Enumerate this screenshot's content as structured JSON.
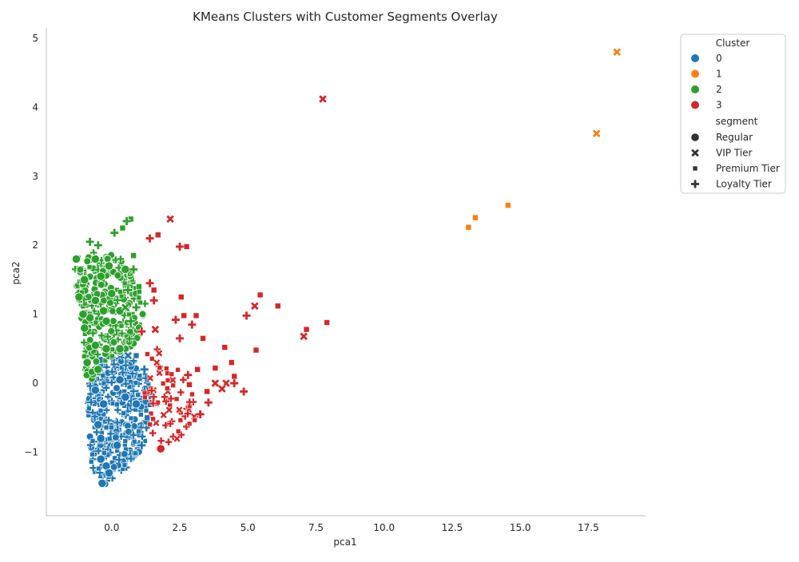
{
  "chart_data": {
    "type": "scatter",
    "title": "KMeans Clusters with Customer Segments Overlay",
    "xlabel": "pca1",
    "ylabel": "pca2",
    "xlim": [
      -2.4,
      19.6
    ],
    "ylim": [
      -1.92,
      5.15
    ],
    "xticks": [
      0.0,
      2.5,
      5.0,
      7.5,
      10.0,
      12.5,
      15.0,
      17.5
    ],
    "xtick_labels": [
      "0.0",
      "2.5",
      "5.0",
      "7.5",
      "10.0",
      "12.5",
      "15.0",
      "17.5"
    ],
    "yticks": [
      -1,
      0,
      1,
      2,
      3,
      4,
      5
    ],
    "ytick_labels": [
      "−1",
      "0",
      "1",
      "2",
      "3",
      "4",
      "5"
    ],
    "grid": false,
    "legend": {
      "placement": "upper-right-outside",
      "hue_title": "Cluster",
      "style_title": "segment",
      "hue_entries": [
        {
          "label": "0",
          "color": "#1f77b4"
        },
        {
          "label": "1",
          "color": "#ff7f0e"
        },
        {
          "label": "2",
          "color": "#2ca02c"
        },
        {
          "label": "3",
          "color": "#d62728"
        }
      ],
      "style_entries": [
        {
          "label": "Regular",
          "marker": "circle"
        },
        {
          "label": "VIP Tier",
          "marker": "x"
        },
        {
          "label": "Premium Tier",
          "marker": "square"
        },
        {
          "label": "Loyalty Tier",
          "marker": "plus"
        }
      ]
    },
    "series": [
      {
        "cluster": "0",
        "color": "#1f77b4",
        "dense_region": {
          "polygon": [
            [
              -0.9,
              0.1
            ],
            [
              -0.3,
              0.4
            ],
            [
              0.5,
              0.45
            ],
            [
              1.2,
              0.2
            ],
            [
              1.5,
              -0.2
            ],
            [
              1.2,
              -0.9
            ],
            [
              0.3,
              -1.35
            ],
            [
              -0.2,
              -1.6
            ],
            [
              -0.8,
              -1.2
            ]
          ],
          "count": 380,
          "markers": [
            "circle",
            "square",
            "plus",
            "square",
            "plus"
          ]
        },
        "points": [
          {
            "x": -0.35,
            "y": -1.45,
            "marker": "circle"
          },
          {
            "x": -0.4,
            "y": -1.1,
            "marker": "circle"
          },
          {
            "x": -0.5,
            "y": -0.6,
            "marker": "circle"
          },
          {
            "x": -0.3,
            "y": -0.3,
            "marker": "circle"
          },
          {
            "x": -0.6,
            "y": -0.1,
            "marker": "circle"
          },
          {
            "x": 0.5,
            "y": -0.2,
            "marker": "circle"
          },
          {
            "x": 0.2,
            "y": -0.9,
            "marker": "circle"
          },
          {
            "x": -0.2,
            "y": -1.2,
            "marker": "circle"
          },
          {
            "x": 0.9,
            "y": -0.3,
            "marker": "circle"
          },
          {
            "x": -0.4,
            "y": -0.8,
            "marker": "circle"
          },
          {
            "x": 0.3,
            "y": 0.05,
            "marker": "circle"
          },
          {
            "x": -0.1,
            "y": -1.3,
            "marker": "circle"
          },
          {
            "x": 0.9,
            "y": 0.4,
            "marker": "square"
          },
          {
            "x": 1.2,
            "y": 0.2,
            "marker": "plus"
          },
          {
            "x": 1.3,
            "y": -0.5,
            "marker": "square"
          },
          {
            "x": 1.1,
            "y": -0.9,
            "marker": "plus"
          },
          {
            "x": 0.6,
            "y": 0.4,
            "marker": "x"
          }
        ]
      },
      {
        "cluster": "1",
        "color": "#ff7f0e",
        "points": [
          {
            "x": 18.55,
            "y": 4.8,
            "marker": "x"
          },
          {
            "x": 17.8,
            "y": 3.62,
            "marker": "x"
          },
          {
            "x": 14.55,
            "y": 2.58,
            "marker": "square"
          },
          {
            "x": 13.35,
            "y": 2.4,
            "marker": "square"
          },
          {
            "x": 13.1,
            "y": 2.26,
            "marker": "square"
          }
        ]
      },
      {
        "cluster": "2",
        "color": "#2ca02c",
        "dense_region": {
          "polygon": [
            [
              -1.4,
              1.8
            ],
            [
              -0.8,
              1.9
            ],
            [
              0.2,
              1.85
            ],
            [
              0.9,
              1.6
            ],
            [
              1.3,
              1.2
            ],
            [
              0.9,
              0.5
            ],
            [
              0.2,
              0.4
            ],
            [
              -0.4,
              0.2
            ],
            [
              -0.9,
              -0.05
            ]
          ],
          "count": 300,
          "markers": [
            "circle",
            "plus",
            "square",
            "circle"
          ]
        },
        "points": [
          {
            "x": -1.3,
            "y": 1.8,
            "marker": "circle"
          },
          {
            "x": -0.6,
            "y": 1.8,
            "marker": "circle"
          },
          {
            "x": -0.1,
            "y": 1.7,
            "marker": "circle"
          },
          {
            "x": 0.5,
            "y": 1.65,
            "marker": "circle"
          },
          {
            "x": -1.0,
            "y": 1.5,
            "marker": "circle"
          },
          {
            "x": -0.4,
            "y": 1.55,
            "marker": "circle"
          },
          {
            "x": -1.2,
            "y": 1.25,
            "marker": "circle"
          },
          {
            "x": -0.6,
            "y": 1.2,
            "marker": "circle"
          },
          {
            "x": 0.0,
            "y": 1.3,
            "marker": "circle"
          },
          {
            "x": 0.3,
            "y": 1.05,
            "marker": "circle"
          },
          {
            "x": -0.8,
            "y": 0.95,
            "marker": "circle"
          },
          {
            "x": -1.0,
            "y": 0.8,
            "marker": "circle"
          },
          {
            "x": -0.2,
            "y": 0.9,
            "marker": "circle"
          },
          {
            "x": -0.6,
            "y": 0.55,
            "marker": "circle"
          },
          {
            "x": -0.2,
            "y": 0.5,
            "marker": "circle"
          },
          {
            "x": -0.9,
            "y": 0.3,
            "marker": "circle"
          },
          {
            "x": -0.5,
            "y": 0.2,
            "marker": "circle"
          },
          {
            "x": 0.3,
            "y": 0.5,
            "marker": "circle"
          },
          {
            "x": -1.05,
            "y": 1.0,
            "marker": "circle"
          },
          {
            "x": -0.3,
            "y": 1.05,
            "marker": "circle"
          },
          {
            "x": 0.7,
            "y": 2.38,
            "marker": "square"
          },
          {
            "x": 0.55,
            "y": 2.35,
            "marker": "plus"
          },
          {
            "x": 0.4,
            "y": 2.25,
            "marker": "square"
          },
          {
            "x": 0.1,
            "y": 2.18,
            "marker": "plus"
          },
          {
            "x": 0.8,
            "y": 1.85,
            "marker": "square"
          },
          {
            "x": 0.8,
            "y": 1.65,
            "marker": "plus"
          },
          {
            "x": 1.0,
            "y": 1.4,
            "marker": "square"
          },
          {
            "x": 0.6,
            "y": 1.35,
            "marker": "plus"
          },
          {
            "x": 0.9,
            "y": 1.1,
            "marker": "plus"
          },
          {
            "x": 0.5,
            "y": 1.1,
            "marker": "x"
          },
          {
            "x": 0.7,
            "y": 0.9,
            "marker": "plus"
          },
          {
            "x": -0.8,
            "y": 2.05,
            "marker": "plus"
          },
          {
            "x": -0.5,
            "y": 2.0,
            "marker": "plus"
          }
        ]
      },
      {
        "cluster": "3",
        "color": "#d62728",
        "dense_region": {
          "polygon": [
            [
              1.3,
              0.55
            ],
            [
              2.0,
              0.5
            ],
            [
              2.8,
              0.1
            ],
            [
              3.2,
              -0.5
            ],
            [
              2.4,
              -0.85
            ],
            [
              1.6,
              -0.9
            ],
            [
              1.15,
              -0.4
            ],
            [
              1.25,
              0.1
            ]
          ],
          "count": 75,
          "markers": [
            "plus",
            "square",
            "x",
            "square",
            "plus"
          ]
        },
        "points": [
          {
            "x": 7.75,
            "y": 4.12,
            "marker": "x"
          },
          {
            "x": 2.15,
            "y": 2.38,
            "marker": "x"
          },
          {
            "x": 1.7,
            "y": 2.15,
            "marker": "square"
          },
          {
            "x": 1.4,
            "y": 2.1,
            "marker": "plus"
          },
          {
            "x": 2.5,
            "y": 1.98,
            "marker": "plus"
          },
          {
            "x": 2.75,
            "y": 1.98,
            "marker": "square"
          },
          {
            "x": 5.45,
            "y": 1.28,
            "marker": "square"
          },
          {
            "x": 6.1,
            "y": 1.12,
            "marker": "square"
          },
          {
            "x": 5.25,
            "y": 1.12,
            "marker": "x"
          },
          {
            "x": 4.95,
            "y": 0.98,
            "marker": "plus"
          },
          {
            "x": 7.9,
            "y": 0.88,
            "marker": "square"
          },
          {
            "x": 7.15,
            "y": 0.78,
            "marker": "square"
          },
          {
            "x": 7.05,
            "y": 0.68,
            "marker": "x"
          },
          {
            "x": 5.3,
            "y": 0.48,
            "marker": "square"
          },
          {
            "x": 4.15,
            "y": 0.52,
            "marker": "square"
          },
          {
            "x": 3.35,
            "y": 0.65,
            "marker": "square"
          },
          {
            "x": 2.95,
            "y": 0.85,
            "marker": "plus"
          },
          {
            "x": 3.1,
            "y": 0.98,
            "marker": "square"
          },
          {
            "x": 2.35,
            "y": 0.92,
            "marker": "plus"
          },
          {
            "x": 2.65,
            "y": 0.98,
            "marker": "square"
          },
          {
            "x": 2.55,
            "y": 1.25,
            "marker": "square"
          },
          {
            "x": 1.55,
            "y": 1.35,
            "marker": "square"
          },
          {
            "x": 1.4,
            "y": 1.45,
            "marker": "plus"
          },
          {
            "x": 1.55,
            "y": 1.2,
            "marker": "plus"
          },
          {
            "x": 1.6,
            "y": 0.78,
            "marker": "x"
          },
          {
            "x": 1.1,
            "y": 0.75,
            "marker": "plus"
          },
          {
            "x": 2.5,
            "y": 0.65,
            "marker": "plus"
          },
          {
            "x": 4.4,
            "y": 0.3,
            "marker": "square"
          },
          {
            "x": 4.5,
            "y": 0.1,
            "marker": "square"
          },
          {
            "x": 3.8,
            "y": 0.22,
            "marker": "square"
          },
          {
            "x": 3.15,
            "y": 0.2,
            "marker": "square"
          },
          {
            "x": 3.8,
            "y": 0.0,
            "marker": "x"
          },
          {
            "x": 4.2,
            "y": 0.0,
            "marker": "x"
          },
          {
            "x": 4.5,
            "y": 0.0,
            "marker": "plus"
          },
          {
            "x": 4.05,
            "y": -0.08,
            "marker": "x"
          },
          {
            "x": 4.85,
            "y": -0.12,
            "marker": "plus"
          },
          {
            "x": 3.5,
            "y": -0.12,
            "marker": "square"
          },
          {
            "x": 3.55,
            "y": -0.28,
            "marker": "plus"
          },
          {
            "x": 3.25,
            "y": -0.45,
            "marker": "plus"
          },
          {
            "x": 2.8,
            "y": 0.12,
            "marker": "plus"
          },
          {
            "x": 2.85,
            "y": -0.02,
            "marker": "square"
          },
          {
            "x": 1.8,
            "y": -0.95,
            "marker": "circle"
          }
        ]
      }
    ]
  }
}
